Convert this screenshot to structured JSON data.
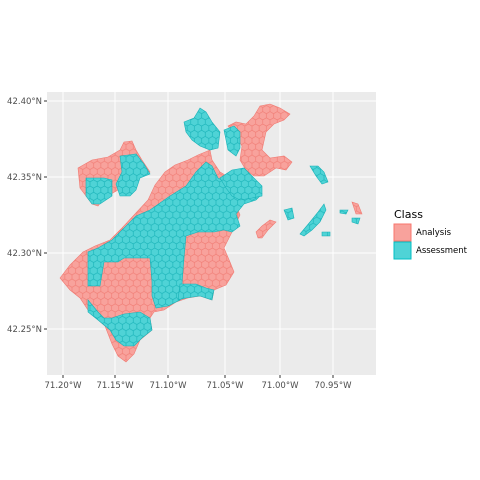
{
  "plot": {
    "background": "#ebebeb",
    "grid_major": "#ffffff",
    "grid_minor": "#f5f5f5"
  },
  "axes": {
    "y_ticks": [
      "42.40°N",
      "42.35°N",
      "42.30°N",
      "42.25°N"
    ],
    "x_ticks": [
      "71.20°W",
      "71.15°W",
      "71.10°W",
      "71.05°W",
      "71.00°W",
      "70.95°W"
    ]
  },
  "legend": {
    "title": "Class",
    "items": [
      {
        "label": "Analysis",
        "fill": "#f8a29c",
        "stroke": "#f8766d"
      },
      {
        "label": "Assessment",
        "fill": "#4fd3d6",
        "stroke": "#00bfc4"
      }
    ]
  },
  "chart_data": {
    "type": "hexbin-map",
    "x_label_values": [
      -71.2,
      -71.15,
      -71.1,
      -71.05,
      -71.0,
      -70.95
    ],
    "y_label_values": [
      42.4,
      42.35,
      42.3,
      42.25
    ],
    "classes": [
      "Analysis",
      "Assessment"
    ],
    "legend_position": "right",
    "grid": true
  }
}
